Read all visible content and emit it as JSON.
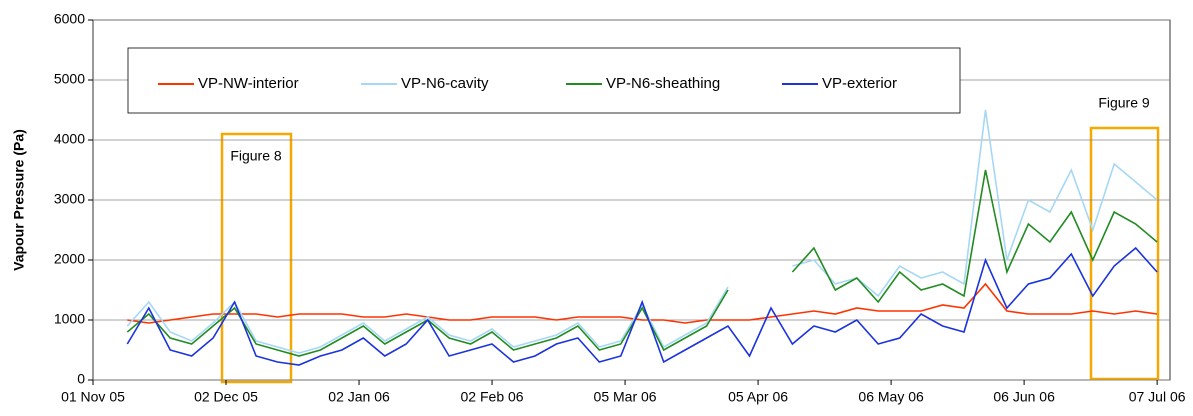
{
  "chart_data": {
    "type": "line",
    "y_label": "Vapour Pressure (Pa)",
    "annotations": [
      "Figure 8",
      "Figure 9"
    ],
    "xlim": [
      "2005-11-01",
      "2006-07-10"
    ],
    "xticks": [
      {
        "value": "2005-11-01",
        "label": "01 Nov 05"
      },
      {
        "value": "2005-12-02",
        "label": "02 Dec 05"
      },
      {
        "value": "2006-01-02",
        "label": "02 Jan 06"
      },
      {
        "value": "2006-02-02",
        "label": "02 Feb 06"
      },
      {
        "value": "2006-03-05",
        "label": "05 Mar 06"
      },
      {
        "value": "2006-04-05",
        "label": "05 Apr 06"
      },
      {
        "value": "2006-05-06",
        "label": "06 May 06"
      },
      {
        "value": "2006-06-06",
        "label": "06 Jun 06"
      },
      {
        "value": "2006-07-07",
        "label": "07 Jul 06"
      }
    ],
    "ylim": [
      0,
      6000
    ],
    "yticks": [
      0,
      1000,
      2000,
      3000,
      4000,
      5000,
      6000
    ],
    "grid": true,
    "x": [
      "2005-11-09",
      "2005-11-14",
      "2005-11-19",
      "2005-11-24",
      "2005-11-29",
      "2005-12-04",
      "2005-12-09",
      "2005-12-14",
      "2005-12-19",
      "2005-12-24",
      "2005-12-29",
      "2006-01-03",
      "2006-01-08",
      "2006-01-13",
      "2006-01-18",
      "2006-01-23",
      "2006-01-28",
      "2006-02-02",
      "2006-02-07",
      "2006-02-12",
      "2006-02-17",
      "2006-02-22",
      "2006-02-27",
      "2006-03-04",
      "2006-03-09",
      "2006-03-14",
      "2006-03-19",
      "2006-03-24",
      "2006-03-29",
      "2006-04-03",
      "2006-04-08",
      "2006-04-13",
      "2006-04-18",
      "2006-04-23",
      "2006-04-28",
      "2006-05-03",
      "2006-05-08",
      "2006-05-13",
      "2006-05-18",
      "2006-05-23",
      "2006-05-28",
      "2006-06-02",
      "2006-06-07",
      "2006-06-12",
      "2006-06-17",
      "2006-06-22",
      "2006-06-27",
      "2006-07-02",
      "2006-07-07"
    ],
    "series": [
      {
        "name": "VP-NW-interior",
        "color": "#ff3300",
        "values": [
          1000,
          950,
          1000,
          1050,
          1100,
          1100,
          1100,
          1050,
          1100,
          1100,
          1100,
          1050,
          1050,
          1100,
          1050,
          1000,
          1000,
          1050,
          1050,
          1050,
          1000,
          1050,
          1050,
          1050,
          1000,
          1000,
          950,
          1000,
          1000,
          1000,
          1050,
          1100,
          1150,
          1100,
          1200,
          1150,
          1150,
          1150,
          1250,
          1200,
          1600,
          1150,
          1100,
          1100,
          1100,
          1150,
          1100,
          1150,
          1100
        ]
      },
      {
        "name": "VP-N6-cavity",
        "color": "#a6d8f5",
        "values": [
          900,
          1300,
          800,
          650,
          950,
          1300,
          650,
          550,
          450,
          550,
          750,
          950,
          650,
          850,
          1050,
          750,
          650,
          850,
          550,
          650,
          750,
          950,
          550,
          650,
          1250,
          550,
          750,
          950,
          1550,
          null,
          null,
          1900,
          2000,
          1600,
          1700,
          1400,
          1900,
          1700,
          1800,
          1600,
          4500,
          2000,
          3000,
          2800,
          3500,
          2500,
          3600,
          3300,
          3000
        ]
      },
      {
        "name": "VP-N6-sheathing",
        "color": "#228b22",
        "values": [
          800,
          1100,
          700,
          600,
          900,
          1200,
          600,
          500,
          400,
          500,
          700,
          900,
          600,
          800,
          1000,
          700,
          600,
          800,
          500,
          600,
          700,
          900,
          500,
          600,
          1200,
          500,
          700,
          900,
          1500,
          null,
          null,
          1800,
          2200,
          1500,
          1700,
          1300,
          1800,
          1500,
          1600,
          1400,
          3500,
          1800,
          2600,
          2300,
          2800,
          2000,
          2800,
          2600,
          2300
        ]
      },
      {
        "name": "VP-exterior",
        "color": "#1a33dd",
        "values": [
          600,
          1200,
          500,
          400,
          700,
          1300,
          400,
          300,
          250,
          400,
          500,
          700,
          400,
          600,
          1000,
          400,
          500,
          600,
          300,
          400,
          600,
          700,
          300,
          400,
          1300,
          300,
          500,
          700,
          900,
          400,
          1200,
          600,
          900,
          800,
          1000,
          600,
          700,
          1100,
          900,
          800,
          2000,
          1200,
          1600,
          1700,
          2100,
          1400,
          1900,
          2200,
          1800
        ]
      }
    ]
  }
}
